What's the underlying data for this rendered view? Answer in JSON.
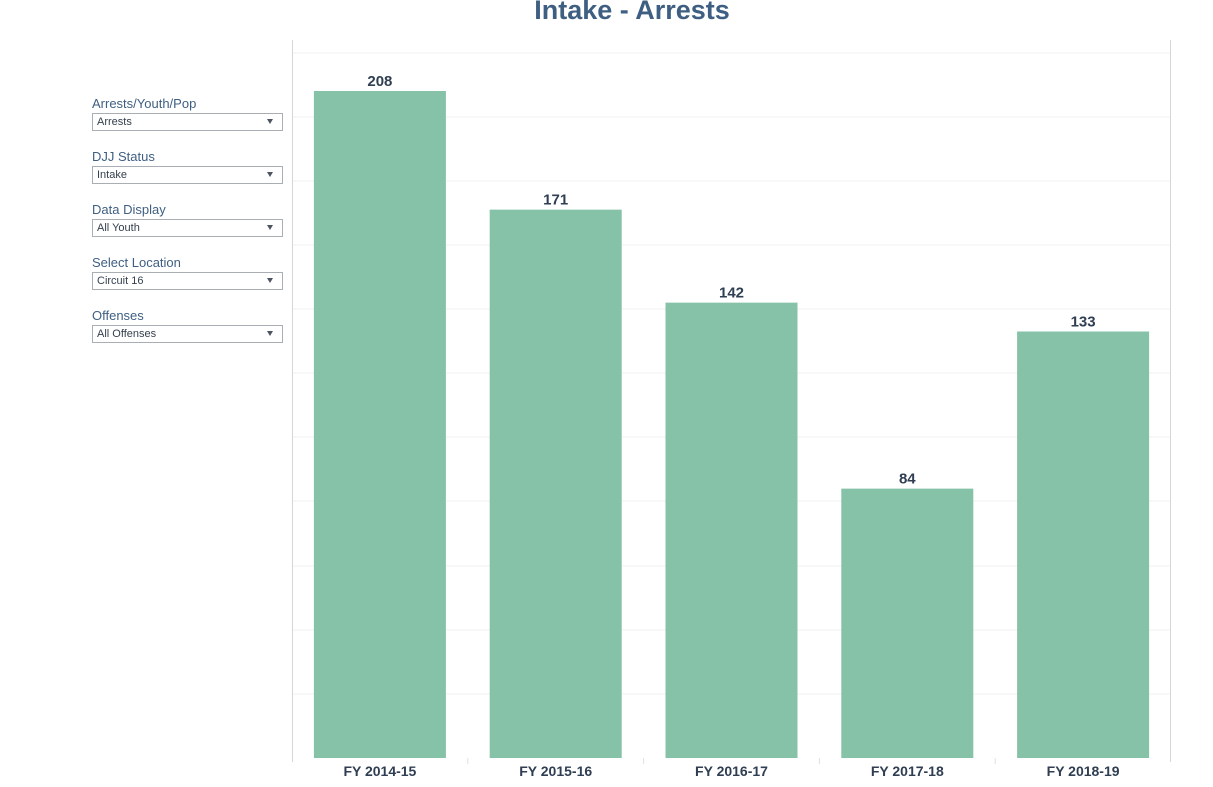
{
  "title": "Intake - Arrests",
  "filters": [
    {
      "label": "Arrests/Youth/Pop",
      "value": "Arrests"
    },
    {
      "label": "DJJ Status",
      "value": "Intake"
    },
    {
      "label": "Data Display",
      "value": "All Youth"
    },
    {
      "label": "Select Location",
      "value": "Circuit 16"
    },
    {
      "label": "Offenses",
      "value": "All Offenses"
    }
  ],
  "colors": {
    "bar": "#85c2a8",
    "title": "#3e5f82",
    "label": "#2f3e52"
  },
  "chart_data": {
    "type": "bar",
    "categories": [
      "FY 2014-15",
      "FY 2015-16",
      "FY 2016-17",
      "FY 2017-18",
      "FY 2018-19"
    ],
    "values": [
      208,
      171,
      142,
      84,
      133
    ],
    "title": "Intake - Arrests",
    "xlabel": "",
    "ylabel": "",
    "ylim": [
      0,
      220
    ],
    "grid": true,
    "data_labels": true
  }
}
